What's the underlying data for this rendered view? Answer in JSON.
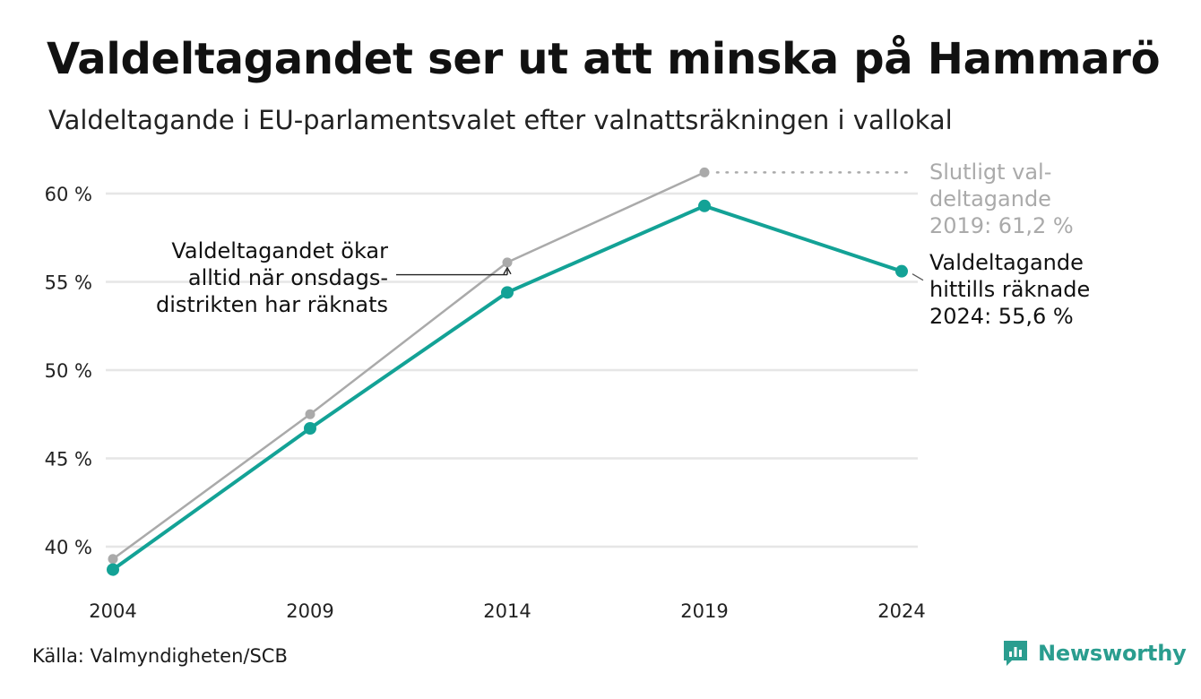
{
  "title": "Valdeltagandet ser ut att minska på Hammarö",
  "subtitle": "Valdeltagande i EU-parlamentsvalet efter valnattsräkningen i vallokal",
  "source": "Källa: Valmyndigheten/SCB",
  "brand": "Newsworthy",
  "colors": {
    "final_series": "#aaaaaa",
    "election_night_series": "#13a296",
    "grid": "#e6e6e6",
    "brand": "#2a9d8f"
  },
  "chart_data": {
    "type": "line",
    "x": [
      2004,
      2009,
      2014,
      2019,
      2024
    ],
    "x_tick_labels": [
      "2004",
      "2009",
      "2014",
      "2019",
      "2024"
    ],
    "y_ticks": [
      40,
      45,
      50,
      55,
      60
    ],
    "y_tick_labels": [
      "40 %",
      "45 %",
      "50 %",
      "55 %",
      "60 %"
    ],
    "ylim": [
      38,
      62
    ],
    "grid": true,
    "series": [
      {
        "key": "final",
        "color": "#aaaaaa",
        "values": [
          39.3,
          47.5,
          56.1,
          61.2,
          null
        ]
      },
      {
        "key": "election_night",
        "color": "#13a296",
        "values": [
          38.7,
          46.7,
          54.4,
          59.3,
          55.6
        ]
      }
    ],
    "annotations": {
      "final_2019": [
        "Slutligt val-",
        "deltagande",
        "2019: 61,2 %"
      ],
      "current_2024": [
        "Valdeltagande",
        "hittills räknade",
        "2024: 55,6 %"
      ],
      "onsdag_note": [
        "Valdeltagandet ökar",
        "alltid när onsdags-",
        "distrikten har räknats"
      ]
    }
  }
}
